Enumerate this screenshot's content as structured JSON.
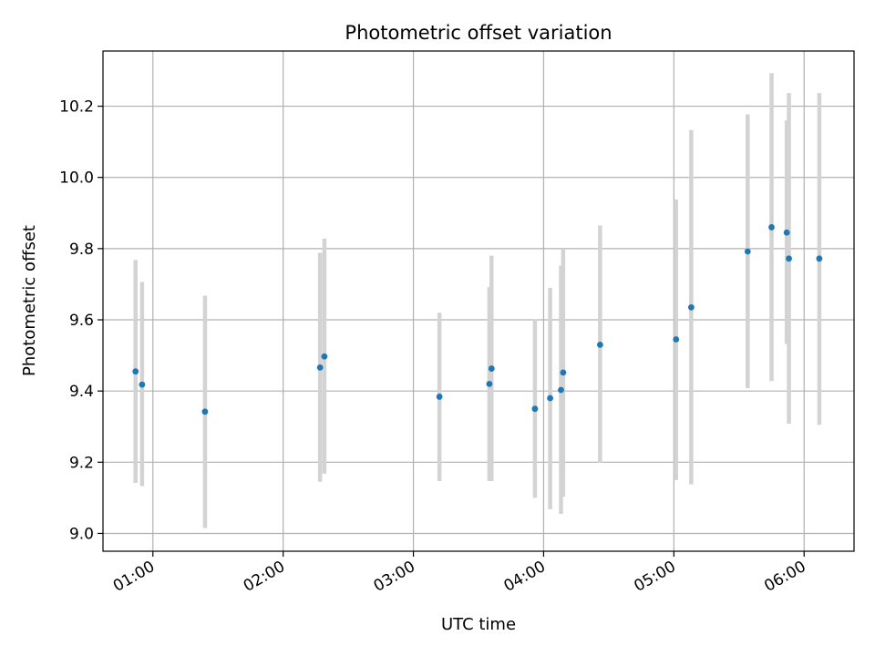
{
  "chart_data": {
    "type": "scatter",
    "title": "Photometric offset variation",
    "xlabel": "UTC time",
    "ylabel": "Photometric offset",
    "x_unit": "UTC",
    "xlim": [
      "00:37",
      "06:23"
    ],
    "ylim": [
      8.95,
      10.355
    ],
    "grid": true,
    "legend": "none",
    "x_ticks": [
      {
        "label": "01:00",
        "value": "01:00"
      },
      {
        "label": "02:00",
        "value": "02:00"
      },
      {
        "label": "03:00",
        "value": "03:00"
      },
      {
        "label": "04:00",
        "value": "04:00"
      },
      {
        "label": "05:00",
        "value": "05:00"
      },
      {
        "label": "06:00",
        "value": "06:00"
      }
    ],
    "y_ticks": [
      {
        "label": "9.0",
        "value": 9.0
      },
      {
        "label": "9.2",
        "value": 9.2
      },
      {
        "label": "9.4",
        "value": 9.4
      },
      {
        "label": "9.6",
        "value": 9.6
      },
      {
        "label": "9.8",
        "value": 9.8
      },
      {
        "label": "10.0",
        "value": 10.0
      },
      {
        "label": "10.2",
        "value": 10.2
      }
    ],
    "points": [
      {
        "x": "00:52",
        "y": 9.455,
        "low": 9.142,
        "high": 9.768
      },
      {
        "x": "00:55",
        "y": 9.418,
        "low": 9.133,
        "high": 9.706
      },
      {
        "x": "01:24",
        "y": 9.342,
        "low": 9.015,
        "high": 9.668
      },
      {
        "x": "02:17",
        "y": 9.466,
        "low": 9.145,
        "high": 9.788
      },
      {
        "x": "02:19",
        "y": 9.497,
        "low": 9.168,
        "high": 9.828
      },
      {
        "x": "03:12",
        "y": 9.384,
        "low": 9.147,
        "high": 9.62
      },
      {
        "x": "03:35",
        "y": 9.42,
        "low": 9.147,
        "high": 9.692
      },
      {
        "x": "03:36",
        "y": 9.463,
        "low": 9.147,
        "high": 9.78
      },
      {
        "x": "03:56",
        "y": 9.35,
        "low": 9.1,
        "high": 9.602
      },
      {
        "x": "04:03",
        "y": 9.38,
        "low": 9.068,
        "high": 9.69
      },
      {
        "x": "04:08",
        "y": 9.403,
        "low": 9.055,
        "high": 9.752
      },
      {
        "x": "04:09",
        "y": 9.452,
        "low": 9.103,
        "high": 9.8
      },
      {
        "x": "04:26",
        "y": 9.53,
        "low": 9.198,
        "high": 9.865
      },
      {
        "x": "05:01",
        "y": 9.545,
        "low": 9.15,
        "high": 9.938
      },
      {
        "x": "05:08",
        "y": 9.635,
        "low": 9.138,
        "high": 10.133
      },
      {
        "x": "05:34",
        "y": 9.792,
        "low": 9.408,
        "high": 10.177
      },
      {
        "x": "05:45",
        "y": 9.86,
        "low": 9.428,
        "high": 10.293
      },
      {
        "x": "05:52",
        "y": 9.845,
        "low": 9.532,
        "high": 10.16
      },
      {
        "x": "05:53",
        "y": 9.772,
        "low": 9.308,
        "high": 10.237
      },
      {
        "x": "06:07",
        "y": 9.772,
        "low": 9.305,
        "high": 10.237
      }
    ],
    "colors": {
      "marker": "#1f77b4",
      "errorbar": "#d3d3d3",
      "grid": "#b0b0b0",
      "axes": "#000000"
    }
  }
}
